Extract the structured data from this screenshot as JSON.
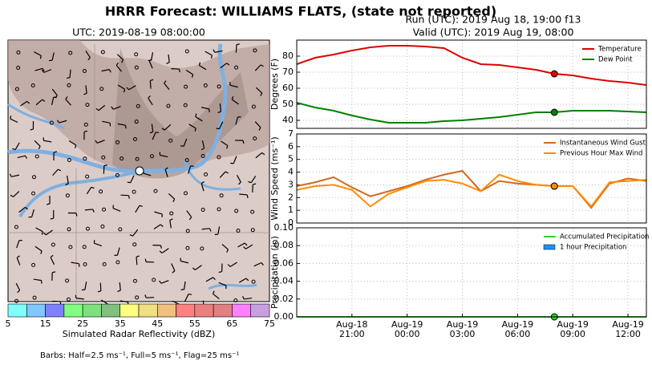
{
  "title": "HRRR Forecast: WILLIAMS FLATS, (state not reported)",
  "run": "Run (UTC): 2019 Aug 18, 19:00 f13",
  "valid": "Valid (UTC): 2019 Aug 19, 08:00",
  "map": {
    "title": "UTC: 2019-08-19 08:00:00"
  },
  "colorbar": {
    "label": "Simulated Radar Reflectivity (dBZ)",
    "bounds": [
      5,
      10,
      15,
      20,
      25,
      30,
      35,
      40,
      45,
      50,
      55,
      60,
      65,
      70,
      75
    ],
    "colors": [
      "#80ffff",
      "#80c8ff",
      "#8080ff",
      "#80ff80",
      "#80e080",
      "#80c080",
      "#ffff80",
      "#f0e080",
      "#f0c080",
      "#ff8080",
      "#e88080",
      "#e08080",
      "#ff80ff",
      "#c8a0e0",
      "#808080"
    ],
    "ticks": [
      5,
      15,
      25,
      35,
      45,
      55,
      65,
      75
    ]
  },
  "note": "Barbs: Half=2.5 ms⁻¹, Full=5 ms⁻¹, Flag=25 ms⁻¹",
  "chart_data": [
    {
      "type": "line",
      "ylabel": "Degrees (F)",
      "ylim": [
        35,
        90
      ],
      "yticks": [
        40,
        50,
        60,
        70,
        80
      ],
      "grid": true,
      "legend": "upper right",
      "highlight_x": "Aug-19 08:00",
      "x": [
        "Aug-18 18:00",
        "Aug-18 19:00",
        "Aug-18 20:00",
        "Aug-18 21:00",
        "Aug-18 22:00",
        "Aug-18 23:00",
        "Aug-19 00:00",
        "Aug-19 01:00",
        "Aug-19 02:00",
        "Aug-19 03:00",
        "Aug-19 04:00",
        "Aug-19 05:00",
        "Aug-19 06:00",
        "Aug-19 07:00",
        "Aug-19 08:00",
        "Aug-19 09:00",
        "Aug-19 10:00",
        "Aug-19 11:00",
        "Aug-19 12:00",
        "Aug-19 13:00"
      ],
      "series": [
        {
          "name": "Temperature",
          "color": "#e00000",
          "values": [
            75,
            79,
            81,
            83.5,
            85.5,
            86.5,
            86.5,
            86,
            85,
            79,
            75,
            74.5,
            73,
            71.5,
            69,
            68,
            66,
            64.5,
            63.5,
            62
          ]
        },
        {
          "name": "Dew Point",
          "color": "#008000",
          "values": [
            51,
            48,
            46,
            43,
            40.5,
            38.5,
            38.5,
            38.5,
            39.5,
            40,
            41,
            42,
            43.5,
            45,
            45,
            46,
            46,
            46,
            45.5,
            45
          ]
        }
      ]
    },
    {
      "type": "line",
      "ylabel": "Wind Speed (ms⁻¹)",
      "ylim": [
        0,
        7
      ],
      "yticks": [
        0,
        1,
        2,
        3,
        4,
        5,
        6,
        7
      ],
      "grid": true,
      "legend": "upper right",
      "highlight_x": "Aug-19 08:00",
      "x": [
        "Aug-18 18:00",
        "Aug-18 19:00",
        "Aug-18 20:00",
        "Aug-18 21:00",
        "Aug-18 22:00",
        "Aug-18 23:00",
        "Aug-19 00:00",
        "Aug-19 01:00",
        "Aug-19 02:00",
        "Aug-19 03:00",
        "Aug-19 04:00",
        "Aug-19 05:00",
        "Aug-19 06:00",
        "Aug-19 07:00",
        "Aug-19 08:00",
        "Aug-19 09:00",
        "Aug-19 10:00",
        "Aug-19 11:00",
        "Aug-19 12:00",
        "Aug-19 13:00"
      ],
      "series": [
        {
          "name": "Instantaneous Wind Gust",
          "color": "#d2691e",
          "values": [
            2.9,
            3.2,
            3.6,
            2.8,
            2.1,
            2.5,
            2.9,
            3.4,
            3.8,
            4.1,
            2.5,
            3.3,
            3.1,
            3.0,
            2.9,
            2.9,
            1.2,
            3.1,
            3.5,
            3.3
          ]
        },
        {
          "name": "Previous Hour Max Wind",
          "color": "#ff8c00",
          "values": [
            2.6,
            2.9,
            3.0,
            2.6,
            1.3,
            2.3,
            2.8,
            3.3,
            3.4,
            3.1,
            2.5,
            3.8,
            3.3,
            3.0,
            2.9,
            2.9,
            1.3,
            3.2,
            3.3,
            3.4
          ]
        }
      ]
    },
    {
      "type": "combo",
      "ylabel": "Precipitation (in)",
      "ylim": [
        0,
        0.1
      ],
      "yticks": [
        {
          "value": 0,
          "label": "0.00"
        },
        {
          "value": 0.02,
          "label": "0.02"
        },
        {
          "value": 0.04,
          "label": "0.04"
        },
        {
          "value": 0.06,
          "label": "0.06"
        },
        {
          "value": 0.08,
          "label": "0.08"
        },
        {
          "value": 0.1,
          "label": "0.10"
        }
      ],
      "grid": true,
      "legend": "upper right",
      "highlight_x": "Aug-19 08:00",
      "x": [
        "Aug-18 18:00",
        "Aug-18 19:00",
        "Aug-18 20:00",
        "Aug-18 21:00",
        "Aug-18 22:00",
        "Aug-18 23:00",
        "Aug-19 00:00",
        "Aug-19 01:00",
        "Aug-19 02:00",
        "Aug-19 03:00",
        "Aug-19 04:00",
        "Aug-19 05:00",
        "Aug-19 06:00",
        "Aug-19 07:00",
        "Aug-19 08:00",
        "Aug-19 09:00",
        "Aug-19 10:00",
        "Aug-19 11:00",
        "Aug-19 12:00",
        "Aug-19 13:00"
      ],
      "xticks": [
        {
          "value": "Aug-18 21:00",
          "label": [
            "Aug-18",
            "21:00"
          ]
        },
        {
          "value": "Aug-19 00:00",
          "label": [
            "Aug-19",
            "00:00"
          ]
        },
        {
          "value": "Aug-19 03:00",
          "label": [
            "Aug-19",
            "03:00"
          ]
        },
        {
          "value": "Aug-19 06:00",
          "label": [
            "Aug-19",
            "06:00"
          ]
        },
        {
          "value": "Aug-19 09:00",
          "label": [
            "Aug-19",
            "09:00"
          ]
        },
        {
          "value": "Aug-19 12:00",
          "label": [
            "Aug-19",
            "12:00"
          ]
        }
      ],
      "series": [
        {
          "name": "Accumulated Precipitation",
          "type": "line",
          "color": "#32cd32",
          "values": [
            0,
            0,
            0,
            0,
            0,
            0,
            0,
            0,
            0,
            0,
            0,
            0,
            0,
            0,
            0,
            0,
            0,
            0,
            0,
            0
          ]
        },
        {
          "name": "1 hour Precipitation",
          "type": "bar",
          "color": "#1e90ff",
          "values": [
            0,
            0,
            0,
            0,
            0,
            0,
            0,
            0,
            0,
            0,
            0,
            0,
            0,
            0,
            0,
            0,
            0,
            0,
            0,
            0
          ]
        }
      ]
    }
  ]
}
